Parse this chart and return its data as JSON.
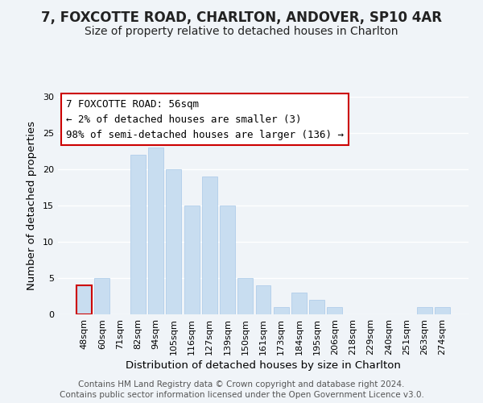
{
  "title": "7, FOXCOTTE ROAD, CHARLTON, ANDOVER, SP10 4AR",
  "subtitle": "Size of property relative to detached houses in Charlton",
  "xlabel": "Distribution of detached houses by size in Charlton",
  "ylabel": "Number of detached properties",
  "bar_color": "#c8ddf0",
  "bar_edge_color": "#a8c8e8",
  "highlight_bar_edge_color": "#cc0000",
  "categories": [
    "48sqm",
    "60sqm",
    "71sqm",
    "82sqm",
    "94sqm",
    "105sqm",
    "116sqm",
    "127sqm",
    "139sqm",
    "150sqm",
    "161sqm",
    "173sqm",
    "184sqm",
    "195sqm",
    "206sqm",
    "218sqm",
    "229sqm",
    "240sqm",
    "251sqm",
    "263sqm",
    "274sqm"
  ],
  "values": [
    4,
    5,
    0,
    22,
    23,
    20,
    15,
    19,
    15,
    5,
    4,
    1,
    3,
    2,
    1,
    0,
    0,
    0,
    0,
    1,
    1
  ],
  "highlight_index": 0,
  "ylim": [
    0,
    30
  ],
  "yticks": [
    0,
    5,
    10,
    15,
    20,
    25,
    30
  ],
  "annotation_title": "7 FOXCOTTE ROAD: 56sqm",
  "annotation_line1": "← 2% of detached houses are smaller (3)",
  "annotation_line2": "98% of semi-detached houses are larger (136) →",
  "annotation_box_edge_color": "#cc0000",
  "footer_line1": "Contains HM Land Registry data © Crown copyright and database right 2024.",
  "footer_line2": "Contains public sector information licensed under the Open Government Licence v3.0.",
  "background_color": "#f0f4f8",
  "grid_color": "#ffffff",
  "title_fontsize": 12,
  "subtitle_fontsize": 10,
  "axis_label_fontsize": 9.5,
  "tick_fontsize": 8,
  "annotation_fontsize": 9,
  "footer_fontsize": 7.5
}
